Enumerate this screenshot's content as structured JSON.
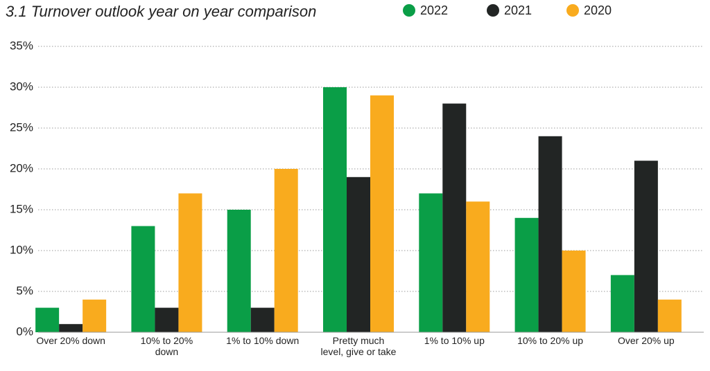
{
  "chart_data": {
    "type": "bar",
    "title": "3.1 Turnover outlook year on year comparison",
    "categories": [
      "Over 20% down",
      "10% to 20% down",
      "1% to 10% down",
      "Pretty much level, give or take",
      "1% to 10% up",
      "10% to 20% up",
      "Over 20% up"
    ],
    "series": [
      {
        "name": "2022",
        "color": "#0a9e47",
        "values": [
          3,
          13,
          15,
          30,
          17,
          14,
          7
        ]
      },
      {
        "name": "2021",
        "color": "#222524",
        "values": [
          1,
          3,
          3,
          19,
          28,
          24,
          21
        ]
      },
      {
        "name": "2020",
        "color": "#f9ab1e",
        "values": [
          4,
          17,
          20,
          29,
          16,
          10,
          4
        ]
      }
    ],
    "ylim": [
      0,
      35
    ],
    "yticks": [
      {
        "value": 0,
        "label": "0%"
      },
      {
        "value": 5,
        "label": "5%"
      },
      {
        "value": 10,
        "label": "10%"
      },
      {
        "value": 15,
        "label": "15%"
      },
      {
        "value": 20,
        "label": "20%"
      },
      {
        "value": 25,
        "label": "25%"
      },
      {
        "value": 30,
        "label": "30%"
      },
      {
        "value": 35,
        "label": "35%"
      }
    ],
    "grid": true,
    "legend": "top"
  }
}
